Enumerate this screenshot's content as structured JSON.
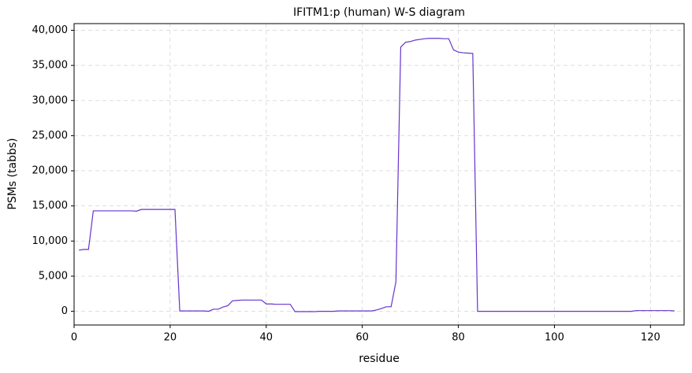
{
  "chart_data": {
    "type": "line",
    "title": "IFITM1:p (human) W-S diagram",
    "xlabel": "residue",
    "ylabel": "PSMs (tabbs)",
    "x": [
      1,
      2,
      3,
      4,
      5,
      6,
      7,
      8,
      9,
      10,
      11,
      12,
      13,
      14,
      15,
      16,
      17,
      18,
      19,
      20,
      21,
      22,
      23,
      24,
      25,
      26,
      27,
      28,
      29,
      30,
      31,
      32,
      33,
      34,
      35,
      36,
      37,
      38,
      39,
      40,
      41,
      42,
      43,
      44,
      45,
      46,
      47,
      48,
      49,
      50,
      51,
      52,
      53,
      54,
      55,
      56,
      57,
      58,
      59,
      60,
      61,
      62,
      63,
      64,
      65,
      66,
      67,
      68,
      69,
      70,
      71,
      72,
      73,
      74,
      75,
      76,
      77,
      78,
      79,
      80,
      81,
      82,
      83,
      84,
      85,
      86,
      87,
      88,
      89,
      90,
      91,
      92,
      93,
      94,
      95,
      96,
      97,
      98,
      99,
      100,
      101,
      102,
      103,
      104,
      105,
      106,
      107,
      108,
      109,
      110,
      111,
      112,
      113,
      114,
      115,
      116,
      117,
      118,
      119,
      120,
      121,
      122,
      123,
      124,
      125
    ],
    "series": [
      {
        "name": "PSMs",
        "color": "#6633cc",
        "values": [
          8700,
          8800,
          8800,
          14300,
          14300,
          14300,
          14300,
          14300,
          14300,
          14300,
          14300,
          14300,
          14250,
          14500,
          14500,
          14500,
          14500,
          14500,
          14500,
          14500,
          14500,
          50,
          50,
          50,
          50,
          50,
          50,
          0,
          300,
          300,
          600,
          800,
          1500,
          1550,
          1600,
          1600,
          1600,
          1600,
          1600,
          1050,
          1050,
          1000,
          1000,
          1000,
          1000,
          -50,
          -50,
          -50,
          -50,
          -50,
          0,
          0,
          0,
          0,
          50,
          50,
          50,
          50,
          50,
          50,
          50,
          50,
          200,
          400,
          650,
          650,
          4200,
          37600,
          38300,
          38400,
          38600,
          38700,
          38800,
          38850,
          38850,
          38850,
          38800,
          38800,
          37200,
          36900,
          36800,
          36750,
          36700,
          0,
          0,
          0,
          0,
          0,
          0,
          0,
          0,
          0,
          0,
          0,
          0,
          0,
          0,
          0,
          0,
          0,
          0,
          0,
          0,
          0,
          0,
          0,
          0,
          0,
          0,
          0,
          0,
          0,
          0,
          0,
          0,
          0,
          100,
          100,
          100,
          100,
          100,
          100,
          100,
          100,
          50
        ]
      }
    ],
    "xlim": [
      0,
      127
    ],
    "ylim": [
      -1950,
      40950
    ],
    "xticks": [
      0,
      20,
      40,
      60,
      80,
      100,
      120
    ],
    "yticks": [
      0,
      {
        "value": 5000,
        "label": "5,000"
      },
      {
        "value": 10000,
        "label": "10,000"
      },
      {
        "value": 15000,
        "label": "15,000"
      },
      {
        "value": 20000,
        "label": "20,000"
      },
      {
        "value": 25000,
        "label": "25,000"
      },
      {
        "value": 30000,
        "label": "30,000"
      },
      {
        "value": 35000,
        "label": "35,000"
      },
      {
        "value": 40000,
        "label": "40,000"
      }
    ],
    "grid": true
  }
}
